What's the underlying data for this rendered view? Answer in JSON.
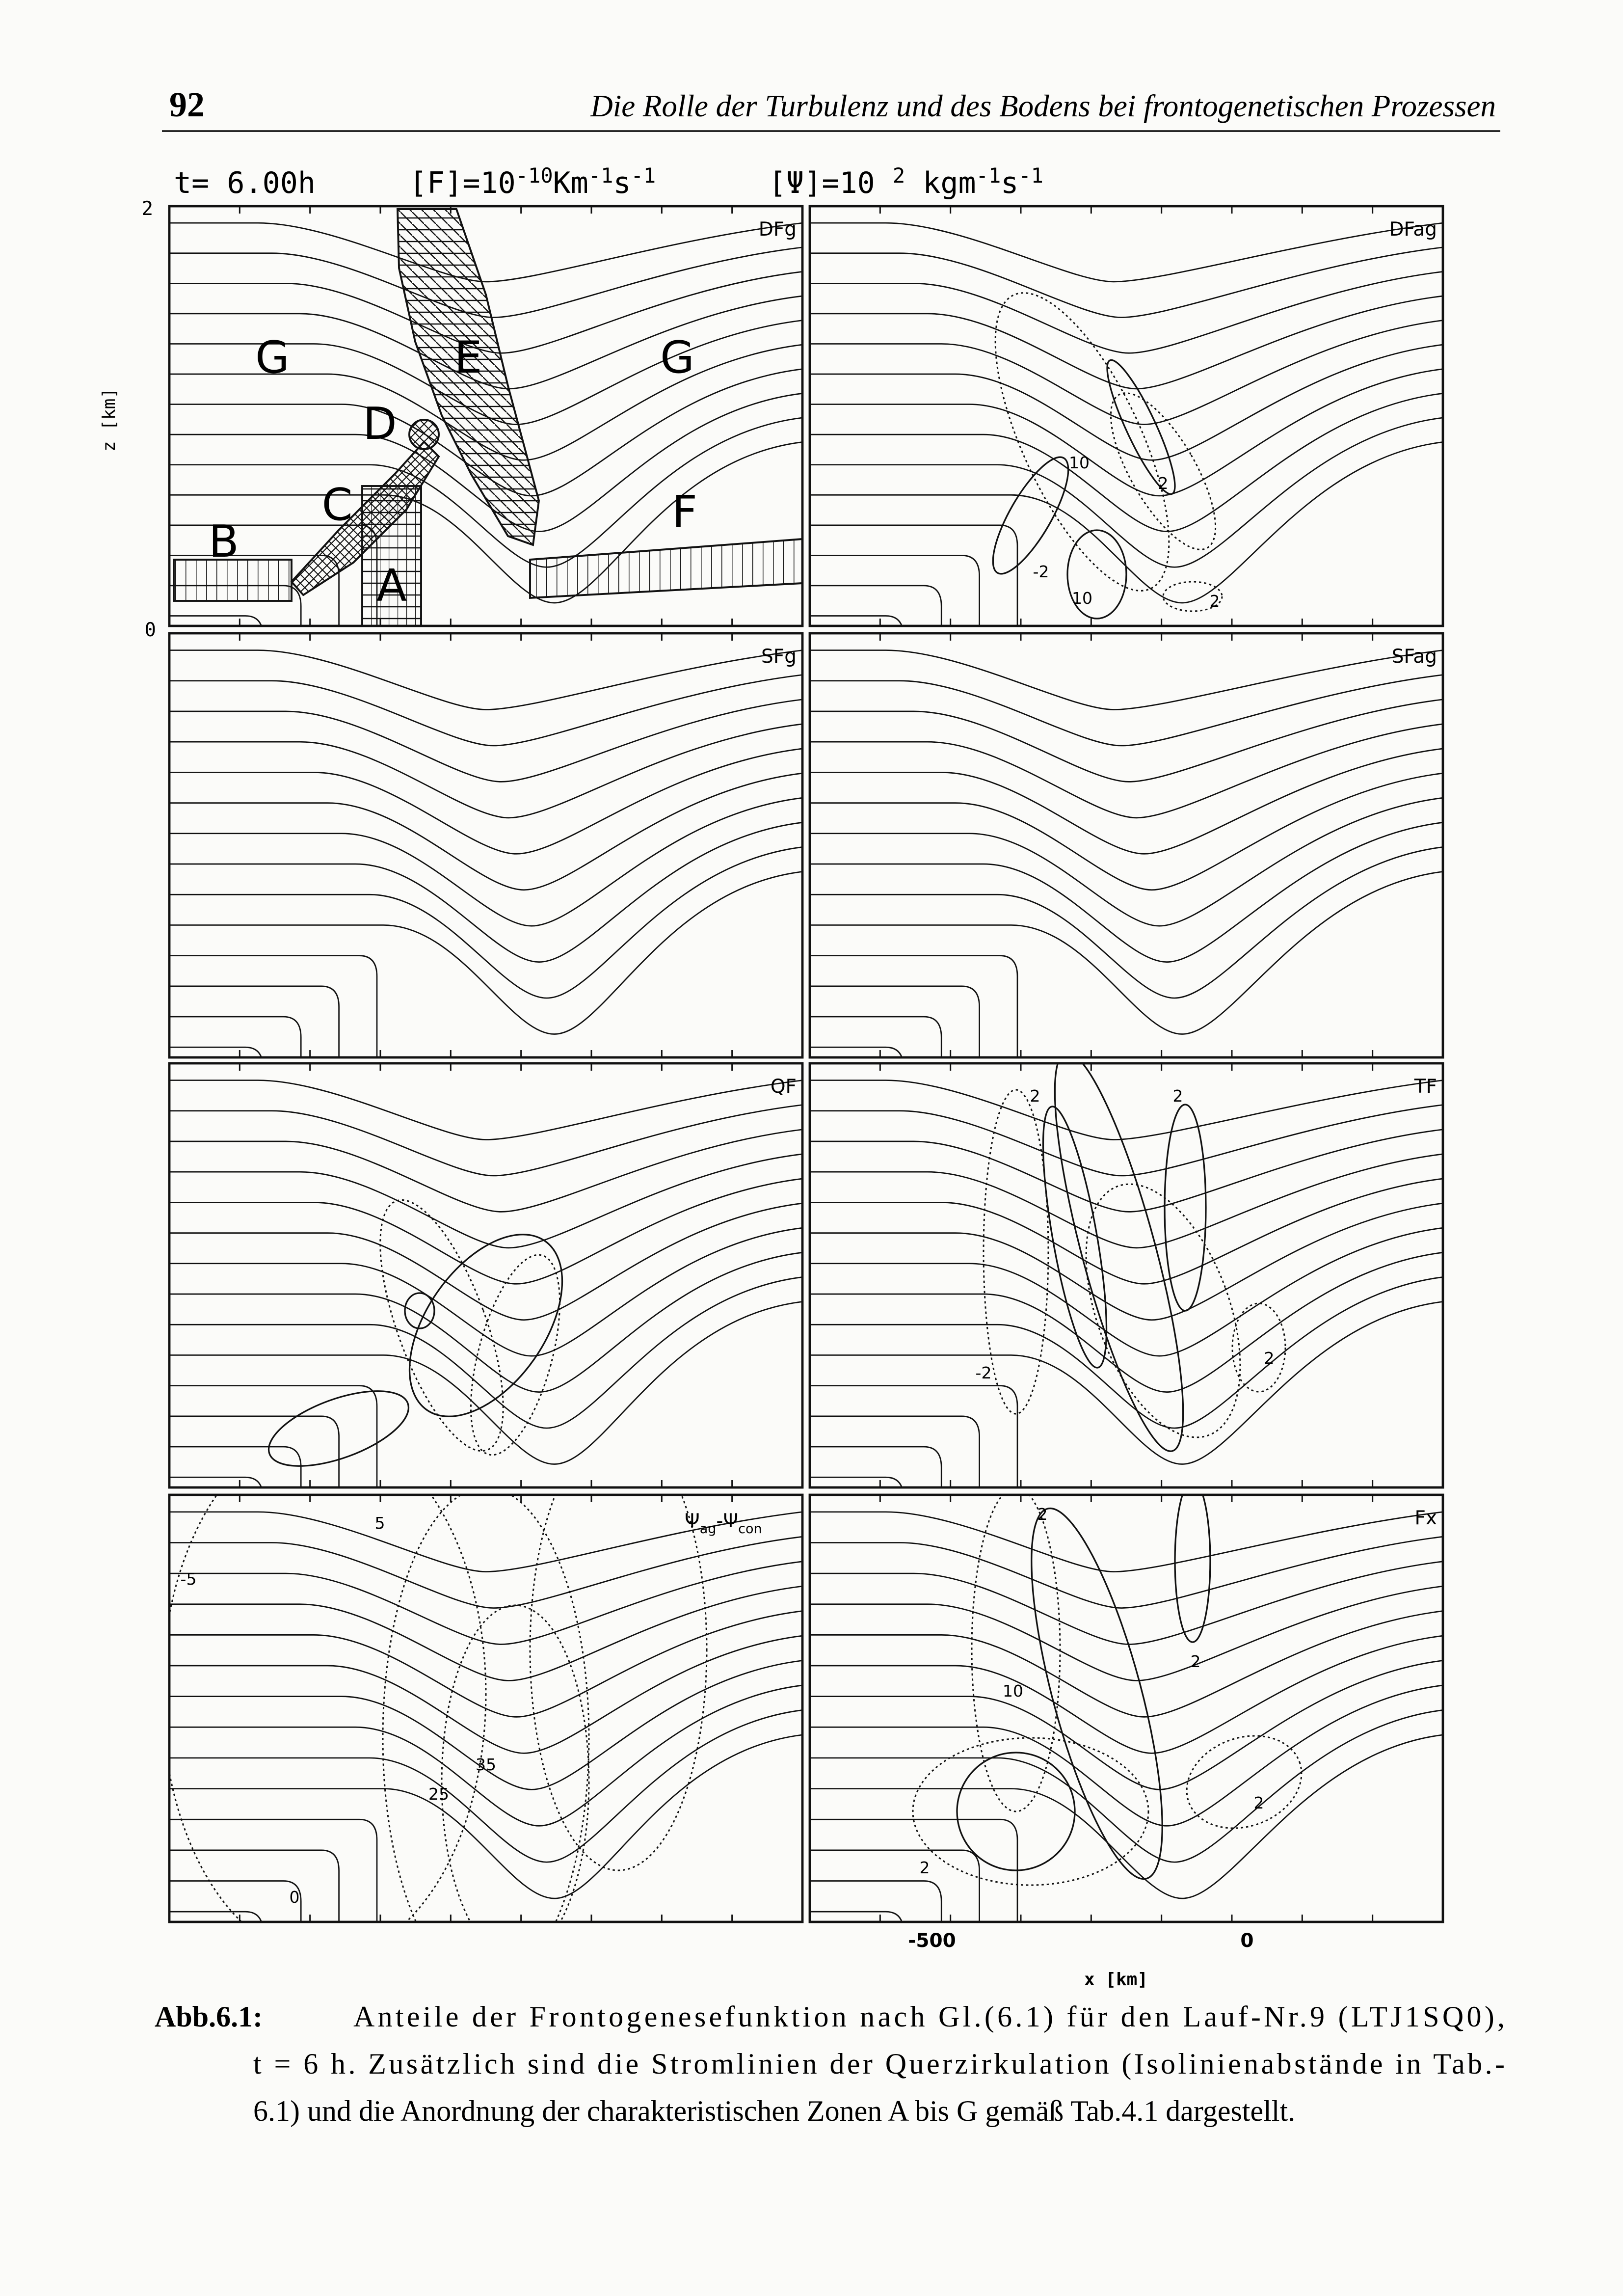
{
  "header": {
    "page_number": "92",
    "running_title": "Die Rolle der Turbulenz und des Bodens bei frontogenetischen Prozessen"
  },
  "figure": {
    "time": "t= 6.00h",
    "f_unit": [
      "[F]=10",
      "-10",
      "Km",
      "-1",
      "s",
      "-1"
    ],
    "psi_unit": [
      "[Ψ]=10 ",
      "2",
      " kgm",
      "-1",
      "s",
      "-1"
    ],
    "z_axis": {
      "label": "z [km]",
      "ticks": [
        "2",
        "0"
      ]
    },
    "x_axis": {
      "label": "x [km]",
      "ticks": [
        "-500",
        "0"
      ]
    },
    "panels": [
      {
        "label": "DFg",
        "annotations": [
          "G",
          "E",
          "G",
          "D",
          "C",
          "B",
          "A",
          "F"
        ]
      },
      {
        "label": "DFag",
        "annotations": [
          "10",
          "-2",
          "2",
          "10",
          "2"
        ]
      },
      {
        "label": "SFg",
        "annotations": []
      },
      {
        "label": "SFag",
        "annotations": []
      },
      {
        "label": "QF",
        "annotations": []
      },
      {
        "label": "TF",
        "annotations": [
          "2",
          "2",
          "2",
          "-2"
        ]
      },
      {
        "label_parts": [
          "Ψ",
          "ag",
          "-Ψ",
          "con"
        ],
        "annotations": [
          "5",
          "-5",
          "25",
          "35",
          "0"
        ]
      },
      {
        "label": "Fx",
        "annotations": [
          "2",
          "10",
          "2",
          "2",
          "2"
        ]
      }
    ]
  },
  "caption": {
    "label": "Abb.6.1:",
    "lines": [
      "Anteile der Frontogenesefunktion nach Gl.(6.1) für den Lauf-Nr.9 (LTJ1SQ0),",
      "t = 6 h. Zusätzlich sind die Stromlinien der Querzirkulation (Isolinienabstände in Tab.-",
      "6.1) und die Anordnung der charakteristischen Zonen A bis G gemäß Tab.4.1 dargestellt."
    ]
  }
}
